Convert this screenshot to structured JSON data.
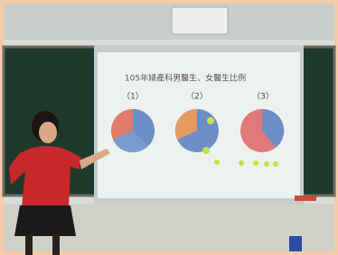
{
  "slide": {
    "title": "105年婦產科男醫生、女醫生比例",
    "labels": [
      "（1）",
      "（2）",
      "（3）"
    ]
  }
}
